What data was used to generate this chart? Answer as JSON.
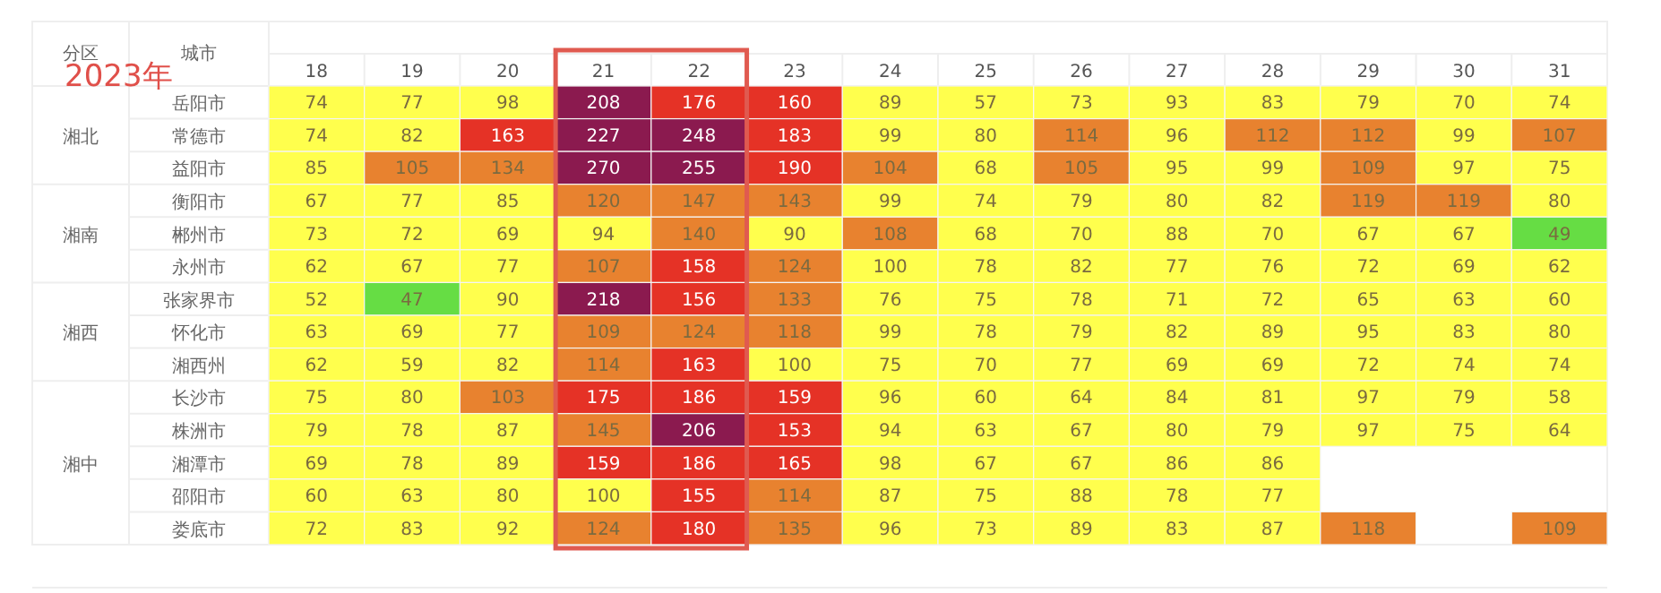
{
  "chart_data": {
    "type": "heatmap",
    "title": "2023年",
    "categories": [
      "18",
      "19",
      "20",
      "21",
      "22",
      "23",
      "24",
      "25",
      "26",
      "27",
      "28",
      "29",
      "30",
      "31"
    ],
    "y_categories": [
      "岳阳市",
      "常德市",
      "益阳市",
      "衡阳市",
      "郴州市",
      "永州市",
      "张家界市",
      "怀化市",
      "湘西州",
      "长沙市",
      "株洲市",
      "湘潭市",
      "邵阳市",
      "娄底市"
    ],
    "cells": [
      [
        74,
        77,
        98,
        208,
        176,
        160,
        89,
        57,
        73,
        93,
        83,
        79,
        70,
        74
      ],
      [
        74,
        82,
        163,
        227,
        248,
        183,
        99,
        80,
        114,
        96,
        112,
        112,
        99,
        107
      ],
      [
        85,
        105,
        134,
        270,
        255,
        190,
        104,
        68,
        105,
        95,
        99,
        109,
        97,
        75
      ],
      [
        67,
        77,
        85,
        120,
        147,
        143,
        99,
        74,
        79,
        80,
        82,
        119,
        119,
        80
      ],
      [
        73,
        72,
        69,
        94,
        140,
        90,
        108,
        68,
        70,
        88,
        70,
        67,
        67,
        49
      ],
      [
        62,
        67,
        77,
        107,
        158,
        124,
        100,
        78,
        82,
        77,
        76,
        72,
        69,
        62
      ],
      [
        52,
        47,
        90,
        218,
        156,
        133,
        76,
        75,
        78,
        71,
        72,
        65,
        63,
        60
      ],
      [
        63,
        69,
        77,
        109,
        124,
        118,
        99,
        78,
        79,
        82,
        89,
        95,
        83,
        80
      ],
      [
        62,
        59,
        82,
        114,
        163,
        100,
        75,
        70,
        77,
        69,
        69,
        72,
        74,
        74
      ],
      [
        75,
        80,
        103,
        175,
        186,
        159,
        96,
        60,
        64,
        84,
        81,
        97,
        79,
        58
      ],
      [
        79,
        78,
        87,
        145,
        206,
        153,
        94,
        63,
        67,
        80,
        79,
        97,
        75,
        64
      ],
      [
        69,
        78,
        89,
        159,
        186,
        165,
        98,
        67,
        67,
        86,
        86,
        null,
        null,
        null
      ],
      [
        60,
        63,
        80,
        100,
        155,
        114,
        87,
        75,
        88,
        78,
        77,
        null,
        null,
        null
      ],
      [
        72,
        83,
        92,
        124,
        180,
        135,
        96,
        73,
        89,
        83,
        87,
        118,
        null,
        109
      ]
    ],
    "colors": [
      [
        "#ffff4d",
        "#ffff4d",
        "#ffff4d",
        "#8b1a4f",
        "#e53226",
        "#e53226",
        "#ffff4d",
        "#ffff4d",
        "#ffff4d",
        "#ffff4d",
        "#ffff4d",
        "#ffff4d",
        "#ffff4d",
        "#ffff4d"
      ],
      [
        "#ffff4d",
        "#ffff4d",
        "#e53226",
        "#8b1a4f",
        "#8b1a4f",
        "#e53226",
        "#ffff4d",
        "#ffff4d",
        "#e8822f",
        "#ffff4d",
        "#e8822f",
        "#e8822f",
        "#ffff4d",
        "#e8822f"
      ],
      [
        "#ffff4d",
        "#e8822f",
        "#e8822f",
        "#8b1a4f",
        "#8b1a4f",
        "#e53226",
        "#e8822f",
        "#ffff4d",
        "#e8822f",
        "#ffff4d",
        "#ffff4d",
        "#e8822f",
        "#ffff4d",
        "#ffff4d"
      ],
      [
        "#ffff4d",
        "#ffff4d",
        "#ffff4d",
        "#e8822f",
        "#e8822f",
        "#e8822f",
        "#ffff4d",
        "#ffff4d",
        "#ffff4d",
        "#ffff4d",
        "#ffff4d",
        "#e8822f",
        "#e8822f",
        "#ffff4d"
      ],
      [
        "#ffff4d",
        "#ffff4d",
        "#ffff4d",
        "#ffff4d",
        "#e8822f",
        "#ffff4d",
        "#e8822f",
        "#ffff4d",
        "#ffff4d",
        "#ffff4d",
        "#ffff4d",
        "#ffff4d",
        "#ffff4d",
        "#66dd44"
      ],
      [
        "#ffff4d",
        "#ffff4d",
        "#ffff4d",
        "#e8822f",
        "#e53226",
        "#e8822f",
        "#ffff4d",
        "#ffff4d",
        "#ffff4d",
        "#ffff4d",
        "#ffff4d",
        "#ffff4d",
        "#ffff4d",
        "#ffff4d"
      ],
      [
        "#ffff4d",
        "#66dd44",
        "#ffff4d",
        "#8b1a4f",
        "#e53226",
        "#e8822f",
        "#ffff4d",
        "#ffff4d",
        "#ffff4d",
        "#ffff4d",
        "#ffff4d",
        "#ffff4d",
        "#ffff4d",
        "#ffff4d"
      ],
      [
        "#ffff4d",
        "#ffff4d",
        "#ffff4d",
        "#e8822f",
        "#e8822f",
        "#e8822f",
        "#ffff4d",
        "#ffff4d",
        "#ffff4d",
        "#ffff4d",
        "#ffff4d",
        "#ffff4d",
        "#ffff4d",
        "#ffff4d"
      ],
      [
        "#ffff4d",
        "#ffff4d",
        "#ffff4d",
        "#e8822f",
        "#e53226",
        "#ffff4d",
        "#ffff4d",
        "#ffff4d",
        "#ffff4d",
        "#ffff4d",
        "#ffff4d",
        "#ffff4d",
        "#ffff4d",
        "#ffff4d"
      ],
      [
        "#ffff4d",
        "#ffff4d",
        "#e8822f",
        "#e53226",
        "#e53226",
        "#e53226",
        "#ffff4d",
        "#ffff4d",
        "#ffff4d",
        "#ffff4d",
        "#ffff4d",
        "#ffff4d",
        "#ffff4d",
        "#ffff4d"
      ],
      [
        "#ffff4d",
        "#ffff4d",
        "#ffff4d",
        "#e8822f",
        "#8b1a4f",
        "#e53226",
        "#ffff4d",
        "#ffff4d",
        "#ffff4d",
        "#ffff4d",
        "#ffff4d",
        "#ffff4d",
        "#ffff4d",
        "#ffff4d"
      ],
      [
        "#ffff4d",
        "#ffff4d",
        "#ffff4d",
        "#e53226",
        "#e53226",
        "#e53226",
        "#ffff4d",
        "#ffff4d",
        "#ffff4d",
        "#ffff4d",
        "#ffff4d",
        null,
        null,
        null
      ],
      [
        "#ffff4d",
        "#ffff4d",
        "#ffff4d",
        "#ffff4d",
        "#e53226",
        "#e8822f",
        "#ffff4d",
        "#ffff4d",
        "#ffff4d",
        "#ffff4d",
        "#ffff4d",
        null,
        null,
        null
      ],
      [
        "#ffff4d",
        "#ffff4d",
        "#ffff4d",
        "#e8822f",
        "#e53226",
        "#e8822f",
        "#ffff4d",
        "#ffff4d",
        "#ffff4d",
        "#ffff4d",
        "#ffff4d",
        "#e8822f",
        null,
        "#e8822f"
      ]
    ],
    "data_labels": true,
    "annotations": [
      "分区",
      "城市",
      "湘北",
      "湘南",
      "湘西",
      "湘中"
    ]
  }
}
